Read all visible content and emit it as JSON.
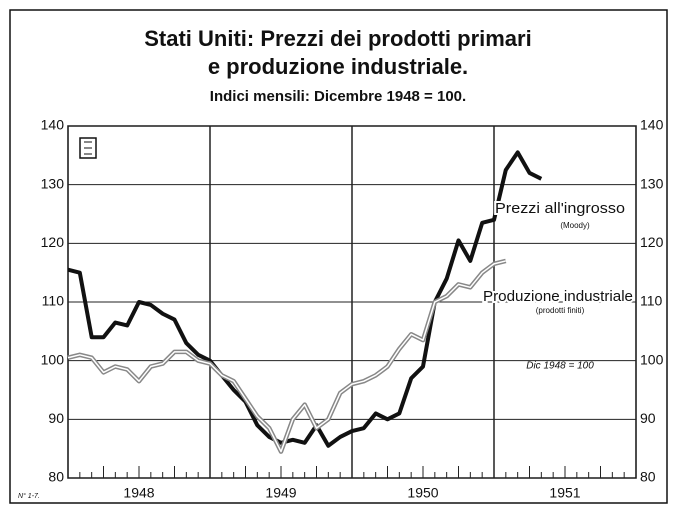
{
  "chart_data": {
    "type": "line",
    "title": "Stati Uniti: Prezzi dei prodotti primari",
    "title_line2": "e produzione industriale.",
    "subtitle": "Indici mensili: Dicembre 1948 = 100.",
    "note": "Dic 1948 = 100",
    "footnote": "N° 1-7.",
    "xlim": [
      1948,
      1952
    ],
    "xticks": [
      {
        "value": 1948.5,
        "label": "1948"
      },
      {
        "value": 1949.5,
        "label": "1949"
      },
      {
        "value": 1950.5,
        "label": "1950"
      },
      {
        "value": 1951.5,
        "label": "1951"
      }
    ],
    "xgrid": [
      1949,
      1950,
      1951
    ],
    "ylim": [
      80,
      140
    ],
    "yticks": [
      80,
      90,
      100,
      110,
      120,
      130,
      140
    ],
    "grid": true,
    "series": [
      {
        "name": "Prezzi all'ingrosso",
        "sublabel": "(Moody)",
        "color": "#111111",
        "x": [
          1948,
          1948.083,
          1948.167,
          1948.25,
          1948.333,
          1948.417,
          1948.5,
          1948.583,
          1948.667,
          1948.75,
          1948.833,
          1948.917,
          1949,
          1949.083,
          1949.167,
          1949.25,
          1949.333,
          1949.417,
          1949.5,
          1949.583,
          1949.667,
          1949.75,
          1949.833,
          1949.917,
          1950,
          1950.083,
          1950.167,
          1950.25,
          1950.333,
          1950.417,
          1950.5,
          1950.583,
          1950.667,
          1950.75,
          1950.833,
          1950.917,
          1951,
          1951.083,
          1951.167,
          1951.25,
          1951.333
        ],
        "values": [
          115.5,
          115,
          104,
          104,
          106.5,
          106,
          110,
          109.5,
          108,
          107,
          103,
          101,
          100,
          97.5,
          95,
          93,
          89,
          87,
          86,
          86.5,
          86,
          89,
          85.5,
          87,
          88,
          88.5,
          91,
          90,
          91,
          97,
          99,
          110,
          114,
          120.5,
          117,
          123.5,
          124,
          132.5,
          135.5,
          132,
          131
        ]
      },
      {
        "name": "Produzione industriale",
        "sublabel": "(prodotti finiti)",
        "color": "#888888",
        "x": [
          1948,
          1948.083,
          1948.167,
          1948.25,
          1948.333,
          1948.417,
          1948.5,
          1948.583,
          1948.667,
          1948.75,
          1948.833,
          1948.917,
          1949,
          1949.083,
          1949.167,
          1949.25,
          1949.333,
          1949.417,
          1949.5,
          1949.583,
          1949.667,
          1949.75,
          1949.833,
          1949.917,
          1950,
          1950.083,
          1950.167,
          1950.25,
          1950.333,
          1950.417,
          1950.5,
          1950.583,
          1950.667,
          1950.75,
          1950.833,
          1950.917,
          1951,
          1951.083
        ],
        "values": [
          100.5,
          101,
          100.5,
          98,
          99,
          98.5,
          96.5,
          99,
          99.5,
          101.5,
          101.5,
          100,
          99.5,
          97.5,
          96.5,
          93.5,
          90.5,
          88.5,
          84.5,
          90,
          92.5,
          88.5,
          90,
          94.5,
          96,
          96.5,
          97.5,
          99,
          102,
          104.5,
          103.5,
          110,
          111,
          113,
          112.5,
          115,
          116.5,
          117
        ]
      }
    ]
  }
}
